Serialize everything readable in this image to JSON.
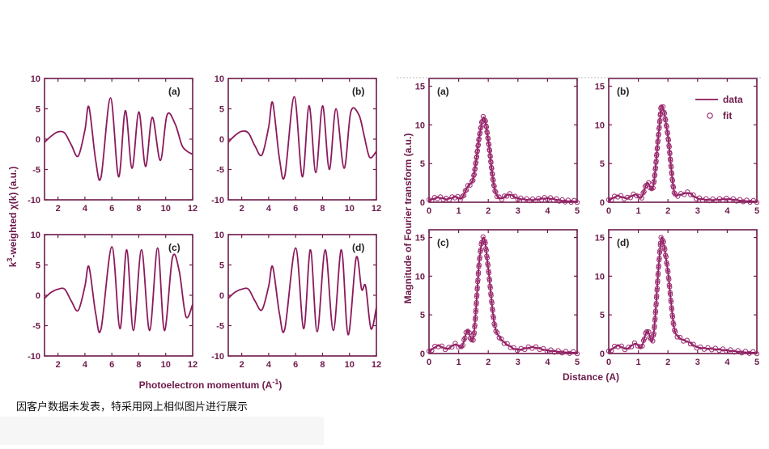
{
  "caption": "因客户数据未发表，特采用网上相似图片进行展示",
  "colors": {
    "curve": "#8b1a5c",
    "axis": "#6d1a4a",
    "fit": "#9c2a70"
  },
  "chart_data": [
    {
      "type": "line",
      "group": "exafs",
      "panels": [
        "(a)",
        "(b)",
        "(c)",
        "(d)"
      ],
      "xlabel_main": "Photoelectron momentum (A",
      "xlabel_sup": "-1",
      "xlabel_tail": ")",
      "ylabel_main": "k",
      "ylabel_sup": "3",
      "ylabel_tail": "-weighted χ(k) (a.u.)",
      "xlim": [
        1,
        12
      ],
      "ylim": [
        -10,
        10
      ],
      "xticks": [
        "2",
        "4",
        "6",
        "8",
        "10",
        "12"
      ],
      "yticks": [
        "10",
        "5",
        "0",
        "-5",
        "-10"
      ],
      "series": [
        {
          "panel": "(a)",
          "x": [
            1.0,
            1.5,
            2.0,
            2.5,
            3.0,
            3.5,
            4.0,
            4.3,
            4.8,
            5.2,
            5.9,
            6.5,
            7.0,
            7.5,
            8.0,
            8.5,
            9.0,
            9.6,
            10.1,
            10.7,
            11.2,
            11.6,
            12.0
          ],
          "y": [
            -0.5,
            0.5,
            1.2,
            1.0,
            -1.0,
            -2.8,
            1.5,
            5.3,
            -3.5,
            -6.2,
            6.8,
            -6.2,
            4.7,
            -4.8,
            4.5,
            -4.5,
            3.6,
            -3.5,
            4.0,
            2.5,
            -1.0,
            -2.0,
            -2.5
          ]
        },
        {
          "panel": "(b)",
          "x": [
            1.0,
            1.5,
            2.0,
            2.5,
            3.0,
            3.5,
            4.0,
            4.3,
            4.8,
            5.2,
            5.9,
            6.5,
            7.0,
            7.5,
            8.0,
            8.5,
            9.0,
            9.6,
            10.1,
            10.7,
            11.1,
            11.5,
            12.0
          ],
          "y": [
            -0.5,
            0.6,
            1.3,
            1.0,
            -1.2,
            -2.6,
            2.0,
            6.0,
            -3.2,
            -6.0,
            7.0,
            -6.2,
            5.5,
            -5.5,
            5.5,
            -5.0,
            5.0,
            -4.8,
            4.5,
            4.0,
            0.5,
            -3.0,
            -2.0
          ]
        },
        {
          "panel": "(c)",
          "x": [
            1.0,
            1.5,
            2.0,
            2.5,
            3.0,
            3.5,
            4.0,
            4.3,
            4.8,
            5.2,
            6.0,
            6.6,
            7.1,
            7.6,
            8.2,
            8.8,
            9.4,
            9.9,
            10.5,
            11.0,
            11.5,
            12.0
          ],
          "y": [
            -0.5,
            0.5,
            1.0,
            1.0,
            -1.0,
            -2.5,
            1.5,
            4.7,
            -3.0,
            -5.5,
            8.0,
            -5.5,
            7.5,
            -5.8,
            7.5,
            -5.8,
            7.8,
            -5.8,
            6.2,
            4.0,
            -3.5,
            -1.5
          ]
        },
        {
          "panel": "(d)",
          "x": [
            1.0,
            1.5,
            2.0,
            2.5,
            3.0,
            3.5,
            4.0,
            4.3,
            4.8,
            5.2,
            6.0,
            6.6,
            7.1,
            7.6,
            8.2,
            8.8,
            9.4,
            9.9,
            10.5,
            10.9,
            11.2,
            11.6,
            12.0
          ],
          "y": [
            -0.5,
            0.5,
            1.0,
            1.0,
            -1.0,
            -2.4,
            1.5,
            4.7,
            -3.0,
            -5.5,
            7.8,
            -5.5,
            7.5,
            -6.0,
            7.5,
            -5.8,
            7.5,
            -6.5,
            6.2,
            1.0,
            1.5,
            -5.5,
            -2.0
          ]
        }
      ]
    },
    {
      "type": "line",
      "group": "ft",
      "panels": [
        "(a)",
        "(b)",
        "(c)",
        "(d)"
      ],
      "xlabel": "Distance (A)",
      "ylabel": "Magnitude of Fourier transform (a.u.)",
      "xlim": [
        0,
        5
      ],
      "ylim": [
        0,
        16
      ],
      "xticks": [
        "0",
        "1",
        "2",
        "3",
        "4",
        "5"
      ],
      "yticks": [
        "15",
        "10",
        "5",
        "0"
      ],
      "legend": {
        "position": "top-right",
        "panel": "(b)",
        "entries": [
          "data",
          "fit"
        ]
      },
      "series": [
        {
          "panel": "(a)",
          "name": "data",
          "x": [
            0.0,
            0.3,
            0.6,
            0.9,
            1.1,
            1.3,
            1.5,
            1.7,
            1.85,
            2.0,
            2.2,
            2.4,
            2.7,
            3.0,
            3.5,
            4.0,
            4.5,
            5.0
          ],
          "y": [
            0.2,
            0.6,
            0.4,
            0.7,
            0.5,
            2.0,
            3.2,
            8.5,
            11.0,
            8.0,
            2.0,
            0.5,
            1.0,
            0.5,
            0.3,
            0.5,
            0.2,
            0.1
          ]
        },
        {
          "panel": "(b)",
          "name": "data",
          "x": [
            0.0,
            0.3,
            0.6,
            0.9,
            1.1,
            1.3,
            1.5,
            1.7,
            1.8,
            2.0,
            2.2,
            2.4,
            2.7,
            3.0,
            3.5,
            4.0,
            4.5,
            5.0
          ],
          "y": [
            0.2,
            0.8,
            0.5,
            1.0,
            0.6,
            2.5,
            2.0,
            9.5,
            12.5,
            8.5,
            1.5,
            1.0,
            1.2,
            0.5,
            0.3,
            0.4,
            0.2,
            0.1
          ]
        },
        {
          "panel": "(c)",
          "name": "data",
          "x": [
            0.0,
            0.3,
            0.6,
            0.9,
            1.1,
            1.3,
            1.5,
            1.7,
            1.85,
            2.0,
            2.2,
            2.4,
            2.7,
            3.0,
            3.5,
            4.0,
            4.5,
            5.0
          ],
          "y": [
            0.2,
            1.0,
            0.6,
            1.2,
            0.8,
            3.0,
            2.0,
            12.0,
            15.0,
            11.0,
            4.0,
            2.0,
            1.0,
            0.5,
            0.8,
            0.4,
            0.2,
            0.1
          ]
        },
        {
          "panel": "(d)",
          "name": "data",
          "x": [
            0.0,
            0.3,
            0.6,
            0.9,
            1.1,
            1.3,
            1.5,
            1.7,
            1.8,
            2.0,
            2.2,
            2.4,
            2.7,
            3.0,
            3.5,
            4.0,
            4.5,
            5.0
          ],
          "y": [
            0.2,
            1.0,
            0.6,
            1.3,
            0.8,
            3.0,
            2.0,
            12.0,
            15.0,
            10.5,
            3.5,
            2.0,
            1.5,
            0.8,
            0.6,
            0.4,
            0.2,
            0.1
          ]
        }
      ]
    }
  ]
}
